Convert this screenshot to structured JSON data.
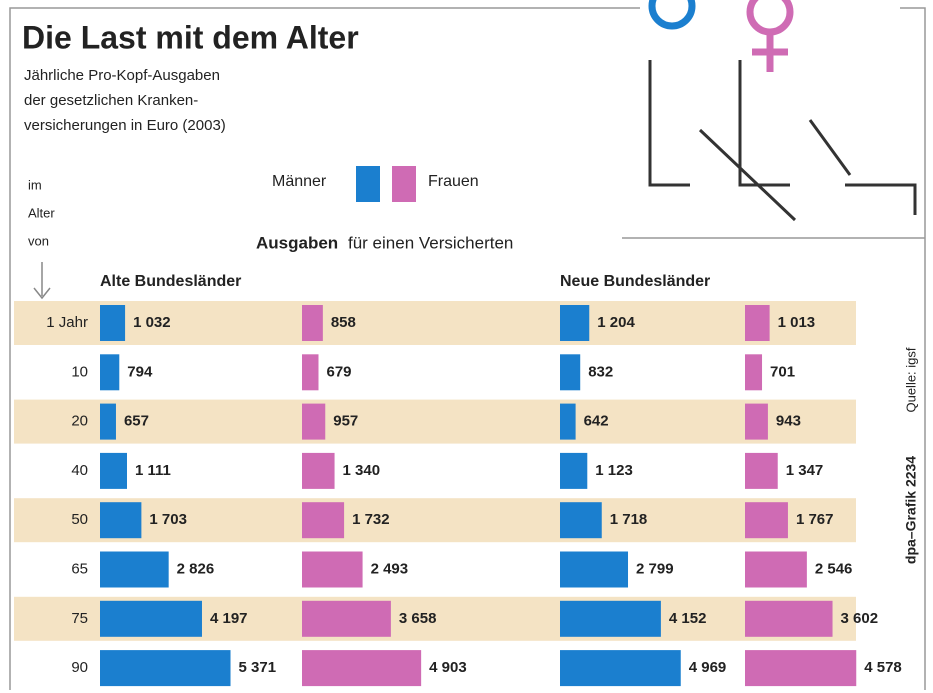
{
  "chart_data": {
    "type": "bar",
    "title": "Die Last mit dem Alter",
    "subtitle": [
      "Jährliche Pro-Kopf-Ausgaben",
      "der gesetzlichen Kranken-",
      "versicherungen in Euro (2003)"
    ],
    "age_label": [
      "im",
      "Alter",
      "von"
    ],
    "header_bold": "Ausgaben",
    "header": "für einen Versicherten",
    "source": "Quelle: igsf",
    "credit": "dpa–Grafik 2234",
    "legend": [
      {
        "name": "Männer",
        "color": "#1b7fcf"
      },
      {
        "name": "Frauen",
        "color": "#cf6bb4"
      }
    ],
    "categories": [
      "1 Jahr",
      "10",
      "20",
      "40",
      "50",
      "65",
      "75",
      "90"
    ],
    "panels": [
      {
        "title": "Alte Bundesländer",
        "series": [
          {
            "values": [
              1032,
              794,
              657,
              1111,
              1703,
              2826,
              4197,
              5371
            ],
            "value_labels": [
              "1 032",
              "794",
              "657",
              "1 111",
              "1 703",
              "2 826",
              "4 197",
              "5 371"
            ]
          },
          {
            "values": [
              858,
              679,
              957,
              1340,
              1732,
              2493,
              3658,
              4903
            ],
            "value_labels": [
              "858",
              "679",
              "957",
              "1 340",
              "1 732",
              "2 493",
              "3 658",
              "4 903"
            ]
          }
        ]
      },
      {
        "title": "Neue Bundesländer",
        "series": [
          {
            "values": [
              1204,
              832,
              642,
              1123,
              1718,
              2799,
              4152,
              4969
            ],
            "value_labels": [
              "1 204",
              "832",
              "642",
              "1 123",
              "1 718",
              "2 799",
              "4 152",
              "4 969"
            ]
          },
          {
            "values": [
              1013,
              701,
              943,
              1347,
              1767,
              2546,
              3602,
              4578
            ],
            "value_labels": [
              "1 013",
              "701",
              "943",
              "1 347",
              "1 767",
              "2 546",
              "3 602",
              "4 578"
            ]
          }
        ]
      }
    ]
  }
}
